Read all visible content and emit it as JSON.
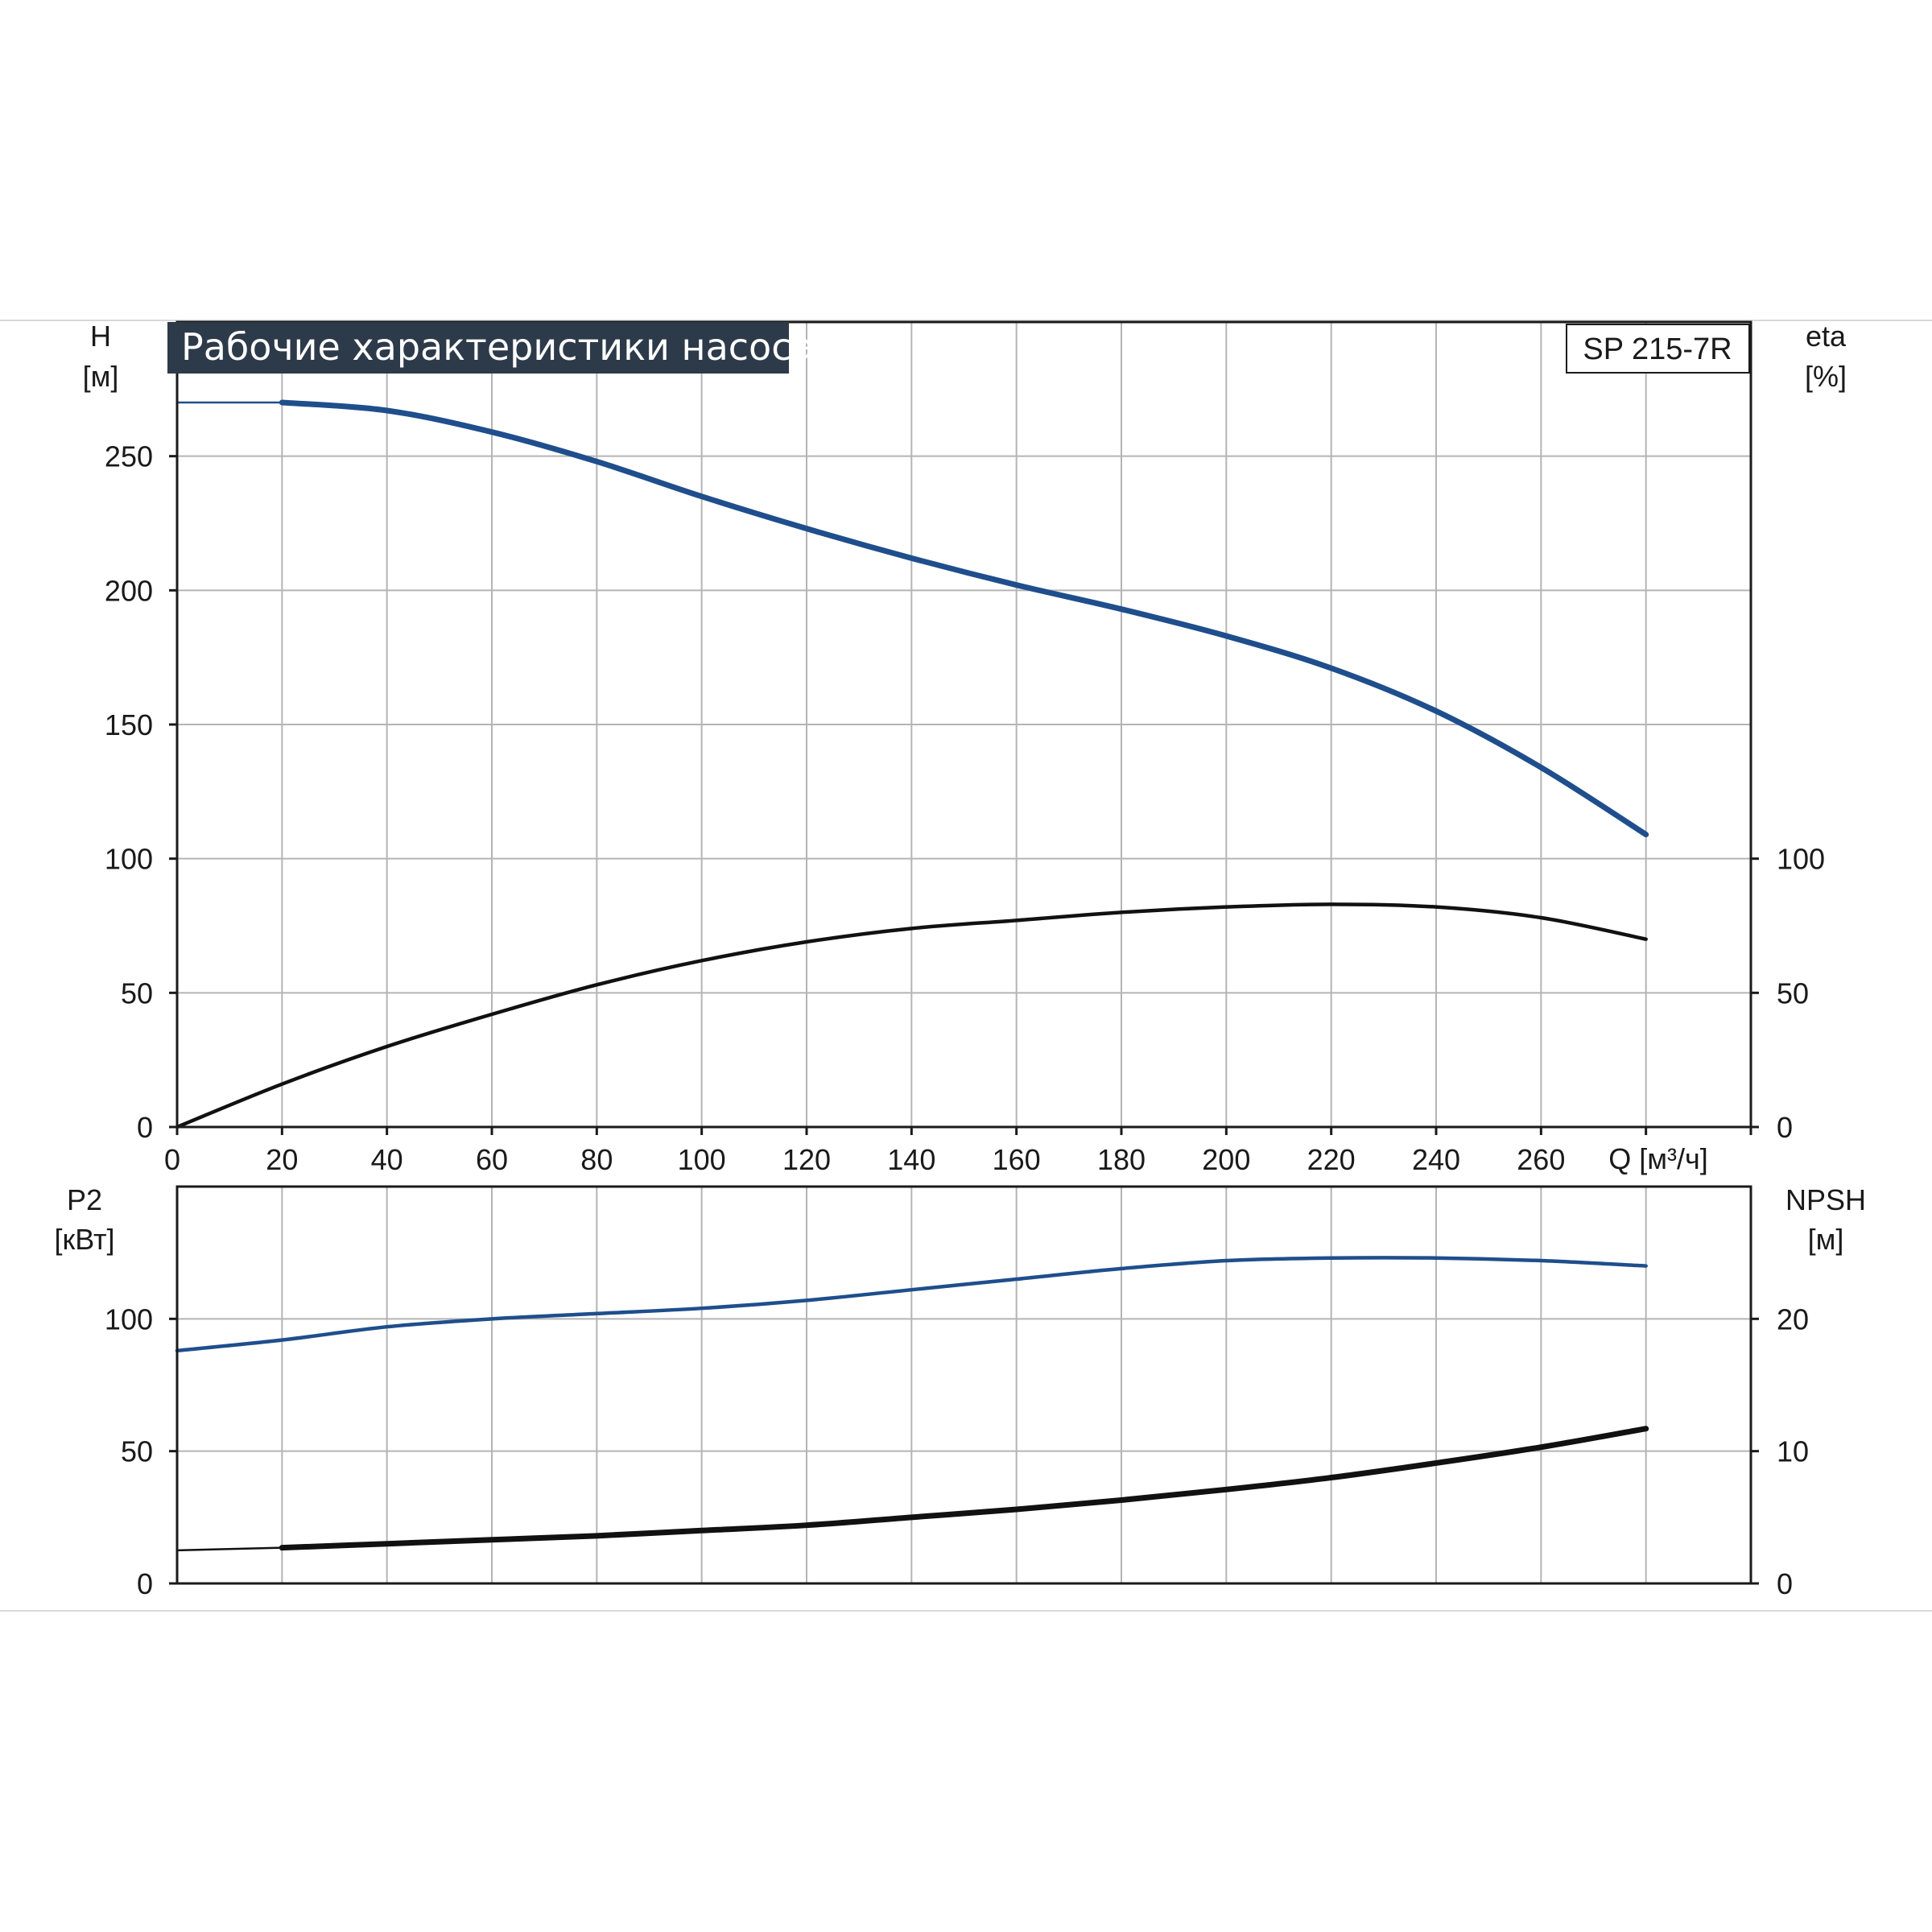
{
  "chart_data": {
    "type": "line",
    "title": "Рабочие характеристики насоса",
    "model": "SP 215-7R",
    "xlabel": "Q [м³/ч]",
    "x_ticks": [
      "0",
      "20",
      "40",
      "60",
      "80",
      "100",
      "120",
      "140",
      "160",
      "180",
      "200",
      "220",
      "240",
      "260"
    ],
    "xlim": [
      0,
      300
    ],
    "grid": true,
    "colors": {
      "blue": "#1f4e8c",
      "black": "#111111",
      "title_bg": "#2d3a4a"
    },
    "top": {
      "ylim": [
        0,
        300
      ],
      "left_axis": {
        "label_name": "H",
        "label_unit": "[м]",
        "ticks": [
          "0",
          "50",
          "100",
          "150",
          "200",
          "250"
        ]
      },
      "right_axis": {
        "label_name": "eta",
        "label_unit": "[%]",
        "ticks": [
          "0",
          "50",
          "100"
        ]
      },
      "series": [
        {
          "axis": "left",
          "color": "#1f4e8c",
          "style": "thick",
          "x": [
            20,
            40,
            60,
            80,
            100,
            120,
            140,
            160,
            180,
            200,
            220,
            240,
            260,
            280
          ],
          "y": [
            270,
            267,
            259,
            248,
            235,
            223,
            212,
            202,
            193,
            183,
            171,
            155,
            134,
            109
          ]
        },
        {
          "axis": "left",
          "color": "#1f4e8c",
          "style": "thin",
          "x": [
            0,
            20
          ],
          "y": [
            270,
            270
          ]
        },
        {
          "axis": "right",
          "color": "#111111",
          "style": "medium",
          "x": [
            0,
            20,
            40,
            60,
            80,
            100,
            120,
            140,
            160,
            180,
            200,
            220,
            240,
            260,
            280
          ],
          "y": [
            0,
            16,
            30,
            42,
            53,
            62,
            69,
            74,
            77,
            80,
            82,
            83,
            82,
            78,
            70
          ]
        }
      ]
    },
    "bottom": {
      "ylim": [
        0,
        150
      ],
      "left_axis": {
        "label_name": "P2",
        "label_unit": "[кВт]",
        "ticks": [
          "0",
          "50",
          "100"
        ]
      },
      "right_axis": {
        "label_name": "NPSH",
        "label_unit": "[м]",
        "ticks": [
          "0",
          "10",
          "20"
        ]
      },
      "series": [
        {
          "axis": "left",
          "color": "#1f4e8c",
          "style": "medium",
          "x": [
            0,
            20,
            40,
            60,
            80,
            100,
            120,
            140,
            160,
            180,
            200,
            220,
            240,
            260,
            280
          ],
          "y": [
            88,
            92,
            97,
            100,
            102,
            104,
            107,
            111,
            115,
            119,
            122,
            123,
            123,
            122,
            120
          ]
        },
        {
          "axis": "right",
          "color": "#111111",
          "style": "thick",
          "x": [
            20,
            40,
            60,
            80,
            100,
            120,
            140,
            160,
            180,
            200,
            220,
            240,
            260,
            280
          ],
          "y": [
            2.7,
            3.0,
            3.3,
            3.6,
            4.0,
            4.4,
            5.0,
            5.6,
            6.3,
            7.1,
            8.0,
            9.1,
            10.3,
            11.7
          ]
        },
        {
          "axis": "right",
          "color": "#111111",
          "style": "thin",
          "x": [
            0,
            20
          ],
          "y": [
            2.5,
            2.7
          ]
        }
      ],
      "right_ylim": [
        0,
        30
      ]
    }
  }
}
